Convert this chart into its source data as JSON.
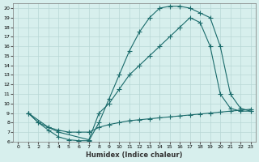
{
  "xlabel": "Humidex (Indice chaleur)",
  "bg_color": "#d7efed",
  "grid_color": "#b8d8d6",
  "line_color": "#1a6b6b",
  "xlim": [
    -0.5,
    23.5
  ],
  "ylim": [
    6,
    20.5
  ],
  "xticks": [
    0,
    1,
    2,
    3,
    4,
    5,
    6,
    7,
    8,
    9,
    10,
    11,
    12,
    13,
    14,
    15,
    16,
    17,
    18,
    19,
    20,
    21,
    22,
    23
  ],
  "yticks": [
    6,
    7,
    8,
    9,
    10,
    11,
    12,
    13,
    14,
    15,
    16,
    17,
    18,
    19,
    20
  ],
  "curve1_x": [
    1,
    2,
    3,
    4,
    5,
    6,
    7,
    8,
    9,
    10,
    11,
    12,
    13,
    14,
    15,
    16,
    17,
    18,
    19,
    20,
    21,
    22,
    23
  ],
  "curve1_y": [
    9,
    8,
    7.2,
    6.5,
    6.2,
    6.1,
    6.1,
    8.0,
    10.5,
    13.0,
    15.5,
    17.5,
    19.0,
    20.0,
    20.2,
    20.2,
    20.0,
    19.5,
    19.0,
    16.0,
    11.0,
    9.5,
    9.2
  ],
  "curve2_x": [
    1,
    3,
    4,
    7,
    8,
    9,
    10,
    11,
    12,
    13,
    14,
    15,
    16,
    17,
    18,
    19,
    20,
    21,
    22,
    23
  ],
  "curve2_y": [
    9,
    7.5,
    7.0,
    6.2,
    9.0,
    10.0,
    11.5,
    13.0,
    14.0,
    15.0,
    16.0,
    17.0,
    18.0,
    19.0,
    18.5,
    16.0,
    11.0,
    9.5,
    9.2,
    9.2
  ],
  "curve3_x": [
    1,
    2,
    3,
    4,
    5,
    6,
    7,
    8,
    9,
    10,
    11,
    12,
    13,
    14,
    15,
    16,
    17,
    18,
    19,
    20,
    21,
    22,
    23
  ],
  "curve3_y": [
    9,
    8,
    7.5,
    7.2,
    7.0,
    7.0,
    7.0,
    7.5,
    7.8,
    8.0,
    8.2,
    8.3,
    8.4,
    8.5,
    8.6,
    8.7,
    8.8,
    8.9,
    9.0,
    9.1,
    9.2,
    9.3,
    9.4
  ]
}
